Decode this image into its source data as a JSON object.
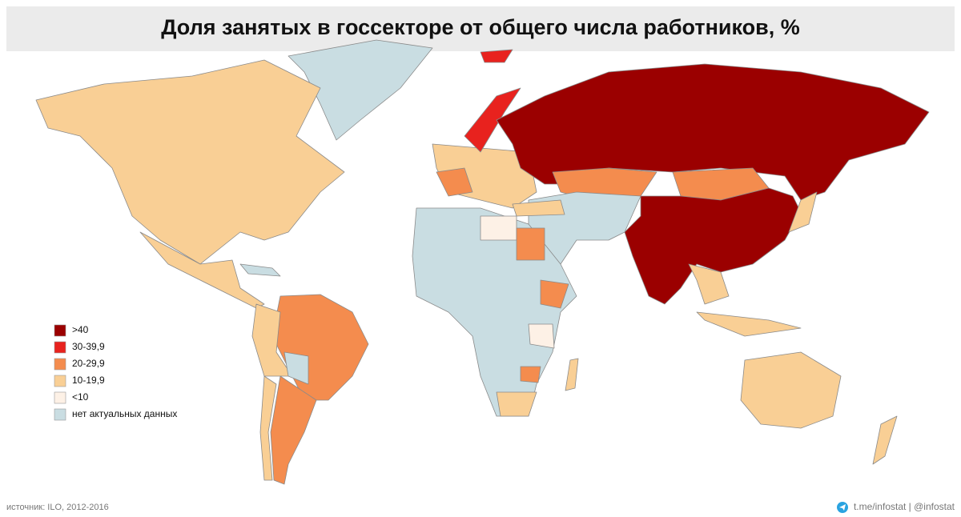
{
  "title": "Доля занятых в госсекторе от общего числа работников, %",
  "legend": [
    {
      "label": ">40",
      "color": "#9b0000"
    },
    {
      "label": "30-39,9",
      "color": "#e8221e"
    },
    {
      "label": "20-29,9",
      "color": "#f48c4e"
    },
    {
      "label": "10-19,9",
      "color": "#f9cf95"
    },
    {
      "label": "<10",
      "color": "#fdf1e6"
    },
    {
      "label": "нет актуальных данных",
      "color": "#c9dde2"
    }
  ],
  "source": "источник: ILO, 2012-2016",
  "credit": "t.me/infostat | @infostat"
}
